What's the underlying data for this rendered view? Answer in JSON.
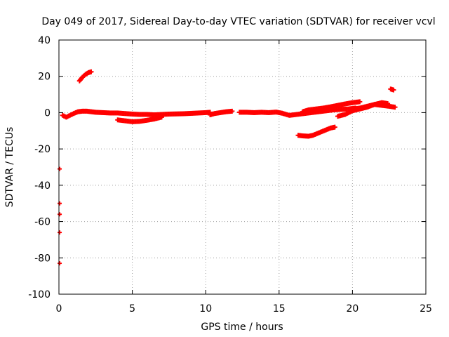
{
  "chart_data": {
    "type": "scatter",
    "title": "Day 049 of 2017, Sidereal Day-to-day VTEC variation (SDTVAR) for receiver vcvl",
    "xlabel": "GPS time / hours",
    "ylabel": "SDTVAR / TECUs",
    "xlim": [
      0,
      25
    ],
    "ylim": [
      -100,
      40
    ],
    "xticks": [
      0,
      5,
      10,
      15,
      20,
      25
    ],
    "yticks": [
      -100,
      -80,
      -60,
      -40,
      -20,
      0,
      20,
      40
    ],
    "grid": true,
    "marker": "plus",
    "color": "#ff0000",
    "series": [
      {
        "name": "SDTVAR",
        "segments": [
          {
            "x": [
              0.25,
              0.5,
              0.75,
              1.0,
              1.3,
              1.6,
              1.9,
              2.2,
              2.5,
              3.0,
              3.5,
              4.0,
              4.5,
              5.0,
              5.5,
              6.0,
              6.5,
              7.0,
              7.5,
              8.0,
              8.5,
              9.0,
              9.5,
              10.0,
              10.3
            ],
            "y": [
              -1.5,
              -2.5,
              -1.5,
              -0.5,
              0.5,
              0.8,
              0.8,
              0.5,
              0.2,
              0.0,
              -0.2,
              -0.2,
              -0.5,
              -0.8,
              -1.0,
              -1.0,
              -1.2,
              -1.0,
              -0.8,
              -0.7,
              -0.6,
              -0.4,
              -0.2,
              0.0,
              0.2
            ]
          },
          {
            "x": [
              4.0,
              4.5,
              5.0,
              5.5,
              6.0,
              6.5,
              7.0
            ],
            "y": [
              -4.0,
              -4.5,
              -5.0,
              -4.8,
              -4.2,
              -3.5,
              -2.5
            ]
          },
          {
            "x": [
              1.4,
              1.6,
              1.8,
              2.0,
              2.2
            ],
            "y": [
              17.5,
              19.5,
              21.0,
              22.0,
              22.5
            ]
          },
          {
            "x": [
              10.3,
              10.6,
              11.0,
              11.4,
              11.8
            ],
            "y": [
              -1.2,
              -0.5,
              0.0,
              0.5,
              0.8
            ]
          },
          {
            "x": [
              12.3,
              12.8,
              13.3,
              13.8,
              14.3,
              14.8,
              15.2,
              15.7,
              16.2,
              16.7,
              17.2,
              17.7,
              18.2,
              18.7,
              19.2,
              19.7,
              20.2
            ],
            "y": [
              0.2,
              0.2,
              0.0,
              0.2,
              0.0,
              0.3,
              -0.3,
              -1.5,
              -1.0,
              -0.5,
              0.0,
              0.5,
              1.0,
              1.5,
              1.8,
              2.0,
              2.5
            ]
          },
          {
            "x": [
              16.6,
              17.0,
              17.5,
              18.0,
              18.5,
              19.0,
              19.5,
              20.0,
              20.5
            ],
            "y": [
              0.5,
              1.5,
              2.0,
              2.5,
              3.2,
              4.0,
              4.8,
              5.5,
              6.0
            ]
          },
          {
            "x": [
              16.3,
              16.6,
              17.0,
              17.3,
              17.6,
              17.9,
              18.2,
              18.5,
              18.8
            ],
            "y": [
              -12.5,
              -12.8,
              -13.0,
              -12.5,
              -11.5,
              -10.5,
              -9.5,
              -8.5,
              -8.0
            ]
          },
          {
            "x": [
              19.0,
              19.5,
              20.0,
              20.5,
              21.0,
              21.5,
              22.0,
              22.5,
              22.9
            ],
            "y": [
              -2.0,
              -1.0,
              1.0,
              2.0,
              3.0,
              4.5,
              4.0,
              3.5,
              3.0
            ]
          },
          {
            "x": [
              20.0,
              20.5,
              21.0,
              21.5,
              22.0,
              22.4
            ],
            "y": [
              2.0,
              2.5,
              3.5,
              4.5,
              5.5,
              5.0
            ]
          },
          {
            "x": [
              22.6,
              22.8
            ],
            "y": [
              13.0,
              12.5
            ]
          },
          {
            "x": [
              0.05,
              0.05,
              0.05,
              0.05,
              0.05
            ],
            "y": [
              -31,
              -50,
              -56,
              -66,
              -83
            ]
          }
        ]
      }
    ]
  }
}
